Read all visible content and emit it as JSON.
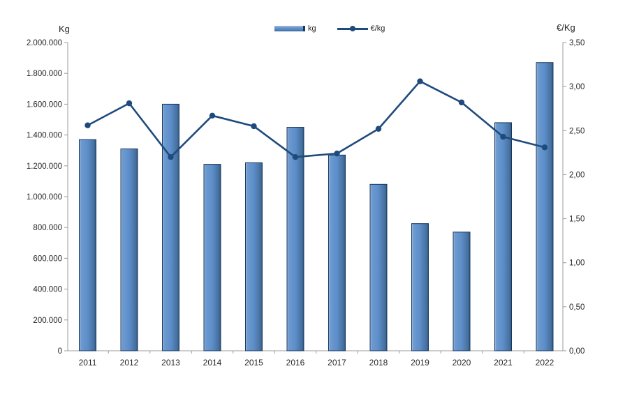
{
  "chart_data": {
    "type": "bar",
    "title": "",
    "categories": [
      "2011",
      "2012",
      "2013",
      "2014",
      "2015",
      "2016",
      "2017",
      "2018",
      "2019",
      "2020",
      "2021",
      "2022"
    ],
    "series": [
      {
        "name": "kg",
        "type": "bar",
        "axis": "left",
        "values": [
          1370000,
          1310000,
          1600000,
          1210000,
          1220000,
          1450000,
          1270000,
          1080000,
          825000,
          770000,
          1480000,
          1870000
        ]
      },
      {
        "name": "€/kg",
        "type": "line",
        "axis": "right",
        "values": [
          2.56,
          2.81,
          2.2,
          2.67,
          2.55,
          2.2,
          2.24,
          2.52,
          3.06,
          2.82,
          2.43,
          2.31
        ]
      }
    ],
    "left_axis": {
      "title": "Kg",
      "min": 0,
      "max": 2000000,
      "step": 200000,
      "tick_labels": [
        "0",
        "200.000",
        "400.000",
        "600.000",
        "800.000",
        "1.000.000",
        "1.200.000",
        "1.400.000",
        "1.600.000",
        "1.800.000",
        "2.000.000"
      ]
    },
    "right_axis": {
      "title": "€/Kg",
      "min": 0,
      "max": 3.5,
      "step": 0.5,
      "tick_labels": [
        "0,00",
        "0,50",
        "1,00",
        "1,50",
        "2,00",
        "2,50",
        "3,00",
        "3,50"
      ]
    },
    "legend": {
      "position": "top",
      "entries": [
        {
          "label": "kg",
          "marker": "bar-swatch"
        },
        {
          "label": "€/kg",
          "marker": "line-marker"
        }
      ]
    },
    "grid": false
  },
  "colors": {
    "bar_fill": "#5d8ec9",
    "bar_fill_light": "#a9c3df",
    "bar_fill_dark": "#2c5982",
    "bar_edge": "#17375e",
    "line": "#1f4a7d",
    "axis": "#9b9b9b",
    "text": "#262626",
    "background": "#ffffff"
  }
}
